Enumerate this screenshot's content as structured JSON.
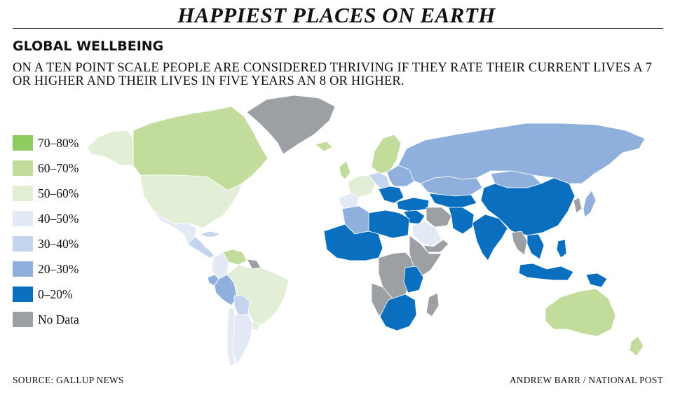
{
  "header": {
    "title": "HAPPIEST PLACES ON EARTH",
    "subtitle": "GLOBAL WELLBEING",
    "description": "ON A TEN POINT SCALE PEOPLE ARE CONSIDERED THRIVING IF THEY RATE THEIR CURRENT LIVES A 7 OR HIGHER AND THEIR LIVES IN FIVE YEARS AN 8 OR HIGHER."
  },
  "legend": {
    "items": [
      {
        "label": "70–80%",
        "color": "#8fcc5f"
      },
      {
        "label": "60–70%",
        "color": "#c2dc9c"
      },
      {
        "label": "50–60%",
        "color": "#e3eed6"
      },
      {
        "label": "40–50%",
        "color": "#e4eaf5"
      },
      {
        "label": "30–40%",
        "color": "#c5d4ee"
      },
      {
        "label": "20–30%",
        "color": "#8fb0dd"
      },
      {
        "label": "0–20%",
        "color": "#0b6fc0"
      },
      {
        "label": "No Data",
        "color": "#9c9fa3"
      }
    ]
  },
  "map": {
    "regions": [
      {
        "name": "greenland",
        "class": "No Data"
      },
      {
        "name": "canada",
        "class": "60–70%"
      },
      {
        "name": "alaska",
        "class": "50–60%"
      },
      {
        "name": "united-states",
        "class": "50–60%"
      },
      {
        "name": "mexico",
        "class": "40–50%"
      },
      {
        "name": "central-america",
        "class": "30–40%"
      },
      {
        "name": "cuba",
        "class": "30–40%"
      },
      {
        "name": "venezuela",
        "class": "60–70%"
      },
      {
        "name": "colombia",
        "class": "40–50%"
      },
      {
        "name": "ecuador",
        "class": "20–30%"
      },
      {
        "name": "peru",
        "class": "20–30%"
      },
      {
        "name": "bolivia",
        "class": "30–40%"
      },
      {
        "name": "brazil",
        "class": "50–60%"
      },
      {
        "name": "guianas",
        "class": "No Data"
      },
      {
        "name": "chile",
        "class": "40–50%"
      },
      {
        "name": "argentina",
        "class": "40–50%"
      },
      {
        "name": "uruguay",
        "class": "50–60%"
      },
      {
        "name": "iceland",
        "class": "60–70%"
      },
      {
        "name": "scandinavia",
        "class": "60–70%"
      },
      {
        "name": "uk",
        "class": "60–70%"
      },
      {
        "name": "western-europe",
        "class": "50–60%"
      },
      {
        "name": "spain-portugal",
        "class": "40–50%"
      },
      {
        "name": "central-europe",
        "class": "30–40%"
      },
      {
        "name": "eastern-europe",
        "class": "20–30%"
      },
      {
        "name": "balkans",
        "class": "0–20%"
      },
      {
        "name": "turkey",
        "class": "0–20%"
      },
      {
        "name": "russia",
        "class": "20–30%"
      },
      {
        "name": "kazakhstan",
        "class": "20–30%"
      },
      {
        "name": "central-asia",
        "class": "0–20%"
      },
      {
        "name": "middle-east",
        "class": "0–20%"
      },
      {
        "name": "saudi-arabia",
        "class": "40–50%"
      },
      {
        "name": "yemen-oman",
        "class": "No Data"
      },
      {
        "name": "iran",
        "class": "No Data"
      },
      {
        "name": "afghanistan-pakistan",
        "class": "0–20%"
      },
      {
        "name": "india",
        "class": "0–20%"
      },
      {
        "name": "mongolia",
        "class": "20–30%"
      },
      {
        "name": "china",
        "class": "0–20%"
      },
      {
        "name": "korea",
        "class": "No Data"
      },
      {
        "name": "japan",
        "class": "20–30%"
      },
      {
        "name": "indochina",
        "class": "0–20%"
      },
      {
        "name": "myanmar-thailand",
        "class": "No Data"
      },
      {
        "name": "indonesia",
        "class": "0–20%"
      },
      {
        "name": "philippines",
        "class": "0–20%"
      },
      {
        "name": "new-guinea",
        "class": "0–20%"
      },
      {
        "name": "australia",
        "class": "60–70%"
      },
      {
        "name": "new-zealand",
        "class": "60–70%"
      },
      {
        "name": "north-africa",
        "class": "0–20%"
      },
      {
        "name": "algeria",
        "class": "20–30%"
      },
      {
        "name": "west-africa",
        "class": "0–20%"
      },
      {
        "name": "central-africa",
        "class": "No Data"
      },
      {
        "name": "east-africa",
        "class": "0–20%"
      },
      {
        "name": "horn-of-africa",
        "class": "No Data"
      },
      {
        "name": "southern-africa",
        "class": "0–20%"
      },
      {
        "name": "angola-namibia",
        "class": "No Data"
      },
      {
        "name": "madagascar",
        "class": "No Data"
      }
    ]
  },
  "footer": {
    "source": "SOURCE: GALLUP NEWS",
    "credit": "ANDREW BARR / NATIONAL POST"
  }
}
